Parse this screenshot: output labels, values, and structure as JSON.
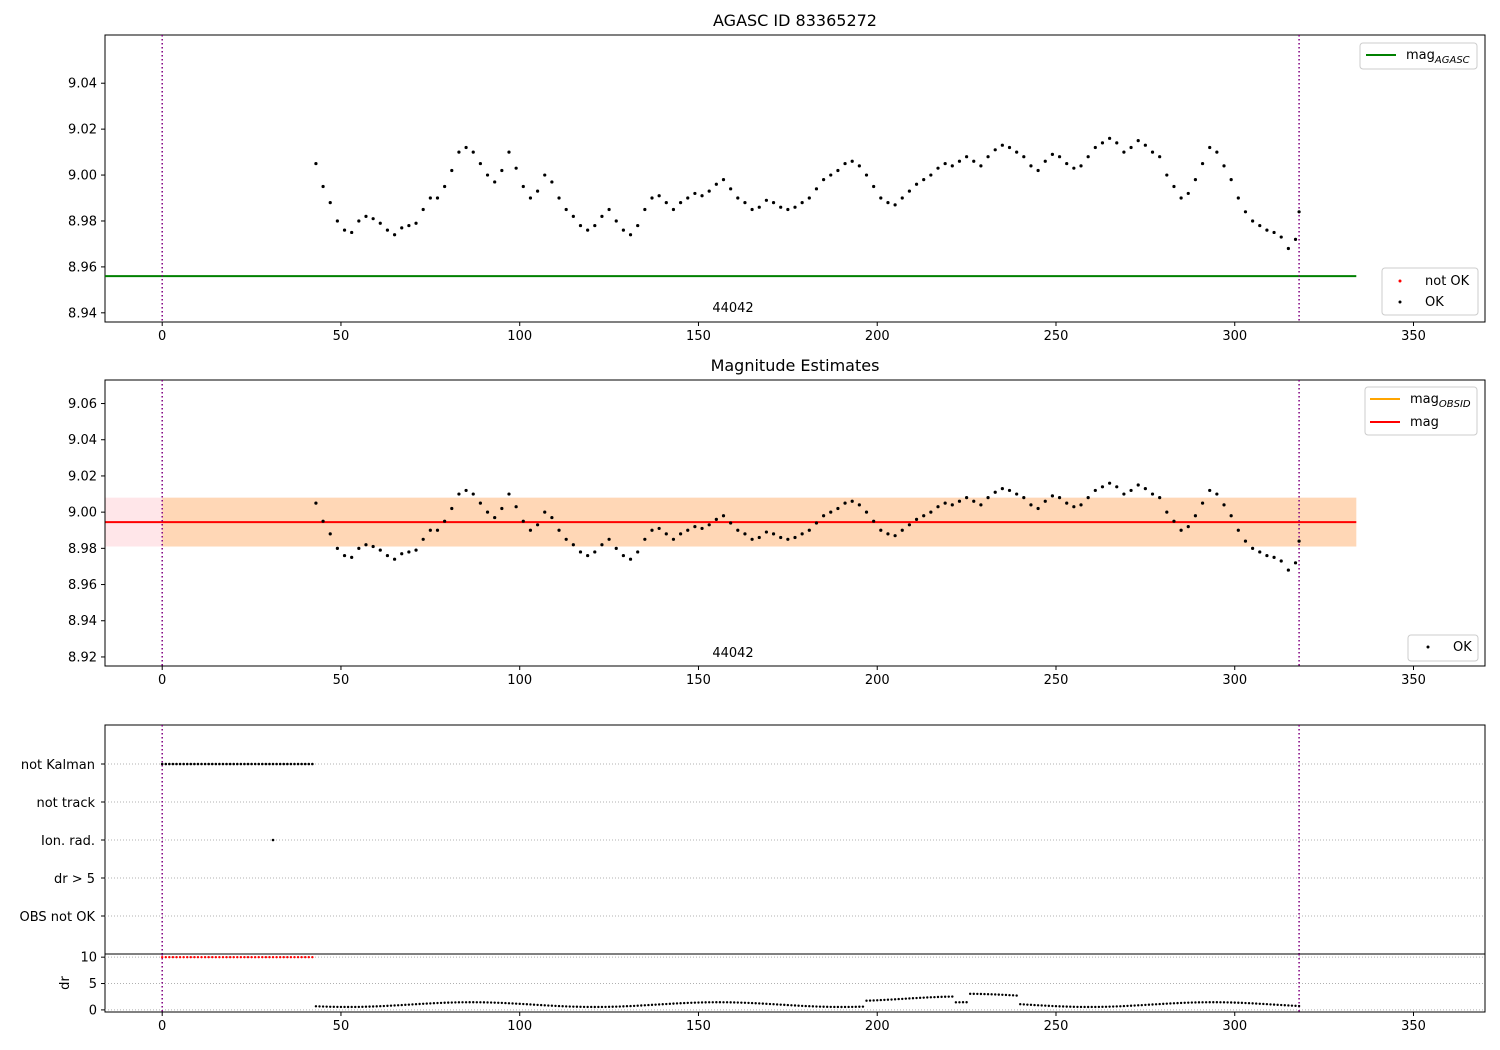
{
  "chart_data": [
    {
      "type": "scatter",
      "title": "AGASC ID 83365272",
      "obsid_label": "44042",
      "xlim": [
        -16,
        370
      ],
      "ylim": [
        8.936,
        9.061
      ],
      "xticks": [
        0,
        50,
        100,
        150,
        200,
        250,
        300,
        350
      ],
      "yticks": [
        8.94,
        8.96,
        8.98,
        9.0,
        9.02,
        9.04
      ],
      "ytick_labels": [
        "8.94",
        "8.96",
        "8.98",
        "9.00",
        "9.02",
        "9.04"
      ],
      "vlines": [
        0,
        318
      ],
      "hline": {
        "name": "mag_AGASC",
        "y": 8.956,
        "x": [
          -16,
          334
        ],
        "color": "#008000"
      },
      "legend_upper": {
        "entry_main": "mag",
        "entry_sub": "AGASC",
        "placement": "upper right"
      },
      "legend_lower": {
        "entries": [
          {
            "label": "not OK",
            "color": "#ff0000"
          },
          {
            "label": "OK",
            "color": "#000000"
          }
        ],
        "placement": "lower right"
      },
      "series": [
        {
          "name": "OK",
          "color": "#000000",
          "x": [
            43,
            45,
            47,
            49,
            51,
            53,
            55,
            57,
            59,
            61,
            63,
            65,
            67,
            69,
            71,
            73,
            75,
            77,
            79,
            81,
            83,
            85,
            87,
            89,
            91,
            93,
            95,
            97,
            99,
            101,
            103,
            105,
            107,
            109,
            111,
            113,
            115,
            117,
            119,
            121,
            123,
            125,
            127,
            129,
            131,
            133,
            135,
            137,
            139,
            141,
            143,
            145,
            147,
            149,
            151,
            153,
            155,
            157,
            159,
            161,
            163,
            165,
            167,
            169,
            171,
            173,
            175,
            177,
            179,
            181,
            183,
            185,
            187,
            189,
            191,
            193,
            195,
            197,
            199,
            201,
            203,
            205,
            207,
            209,
            211,
            213,
            215,
            217,
            219,
            221,
            223,
            225,
            227,
            229,
            231,
            233,
            235,
            237,
            239,
            241,
            243,
            245,
            247,
            249,
            251,
            253,
            255,
            257,
            259,
            261,
            263,
            265,
            267,
            269,
            271,
            273,
            275,
            277,
            279,
            281,
            283,
            285,
            287,
            289,
            291,
            293,
            295,
            297,
            299,
            301,
            303,
            305,
            307,
            309,
            311,
            313,
            315,
            317,
            318
          ],
          "y": [
            9.005,
            8.995,
            8.988,
            8.98,
            8.976,
            8.975,
            8.98,
            8.982,
            8.981,
            8.979,
            8.976,
            8.974,
            8.977,
            8.978,
            8.979,
            8.985,
            8.99,
            8.99,
            8.995,
            9.002,
            9.01,
            9.012,
            9.01,
            9.005,
            9.0,
            8.997,
            9.002,
            9.01,
            9.003,
            8.995,
            8.99,
            8.993,
            9.0,
            8.997,
            8.99,
            8.985,
            8.982,
            8.978,
            8.976,
            8.978,
            8.982,
            8.985,
            8.98,
            8.976,
            8.974,
            8.978,
            8.985,
            8.99,
            8.991,
            8.988,
            8.985,
            8.988,
            8.99,
            8.992,
            8.991,
            8.993,
            8.996,
            8.998,
            8.994,
            8.99,
            8.988,
            8.985,
            8.986,
            8.989,
            8.988,
            8.986,
            8.985,
            8.986,
            8.988,
            8.99,
            8.994,
            8.998,
            9.0,
            9.002,
            9.005,
            9.006,
            9.004,
            9.0,
            8.995,
            8.99,
            8.988,
            8.987,
            8.99,
            8.993,
            8.996,
            8.998,
            9.0,
            9.003,
            9.005,
            9.004,
            9.006,
            9.008,
            9.006,
            9.004,
            9.008,
            9.011,
            9.013,
            9.012,
            9.01,
            9.008,
            9.004,
            9.002,
            9.006,
            9.009,
            9.008,
            9.005,
            9.003,
            9.004,
            9.008,
            9.012,
            9.014,
            9.016,
            9.014,
            9.01,
            9.012,
            9.015,
            9.013,
            9.01,
            9.008,
            9.0,
            8.995,
            8.99,
            8.992,
            8.998,
            9.005,
            9.012,
            9.01,
            9.004,
            8.998,
            8.99,
            8.984,
            8.98,
            8.978,
            8.976,
            8.975,
            8.973,
            8.968,
            8.972,
            8.984
          ]
        }
      ]
    },
    {
      "type": "scatter",
      "title": "Magnitude Estimates",
      "obsid_label": "44042",
      "xlim": [
        -16,
        370
      ],
      "ylim": [
        8.915,
        9.073
      ],
      "xticks": [
        0,
        50,
        100,
        150,
        200,
        250,
        300,
        350
      ],
      "yticks": [
        8.92,
        8.94,
        8.96,
        8.98,
        9.0,
        9.02,
        9.04,
        9.06
      ],
      "ytick_labels": [
        "8.92",
        "8.94",
        "8.96",
        "8.98",
        "9.00",
        "9.02",
        "9.04",
        "9.06"
      ],
      "vlines": [
        0,
        318
      ],
      "mag_line": {
        "name": "mag",
        "y": 8.9945,
        "color": "#ff0000"
      },
      "mag_band": {
        "y0": 8.981,
        "y1": 9.008,
        "x": [
          -16,
          334
        ],
        "color": "#ffb6c1"
      },
      "obsid_band": {
        "y0": 8.981,
        "y1": 9.008,
        "x": [
          0,
          334
        ],
        "color": "#ffa500"
      },
      "legend_upper": {
        "entry_main": "mag",
        "entry_sub": "OBSID",
        "entry_second": "mag",
        "colors": [
          "#ffa500",
          "#ff0000"
        ],
        "placement": "upper right"
      },
      "legend_lower": {
        "entries": [
          {
            "label": "OK",
            "color": "#000000"
          }
        ],
        "placement": "lower right"
      },
      "series": [
        {
          "name": "OK",
          "color": "#000000",
          "x": [
            43,
            45,
            47,
            49,
            51,
            53,
            55,
            57,
            59,
            61,
            63,
            65,
            67,
            69,
            71,
            73,
            75,
            77,
            79,
            81,
            83,
            85,
            87,
            89,
            91,
            93,
            95,
            97,
            99,
            101,
            103,
            105,
            107,
            109,
            111,
            113,
            115,
            117,
            119,
            121,
            123,
            125,
            127,
            129,
            131,
            133,
            135,
            137,
            139,
            141,
            143,
            145,
            147,
            149,
            151,
            153,
            155,
            157,
            159,
            161,
            163,
            165,
            167,
            169,
            171,
            173,
            175,
            177,
            179,
            181,
            183,
            185,
            187,
            189,
            191,
            193,
            195,
            197,
            199,
            201,
            203,
            205,
            207,
            209,
            211,
            213,
            215,
            217,
            219,
            221,
            223,
            225,
            227,
            229,
            231,
            233,
            235,
            237,
            239,
            241,
            243,
            245,
            247,
            249,
            251,
            253,
            255,
            257,
            259,
            261,
            263,
            265,
            267,
            269,
            271,
            273,
            275,
            277,
            279,
            281,
            283,
            285,
            287,
            289,
            291,
            293,
            295,
            297,
            299,
            301,
            303,
            305,
            307,
            309,
            311,
            313,
            315,
            317,
            318
          ],
          "y": [
            9.005,
            8.995,
            8.988,
            8.98,
            8.976,
            8.975,
            8.98,
            8.982,
            8.981,
            8.979,
            8.976,
            8.974,
            8.977,
            8.978,
            8.979,
            8.985,
            8.99,
            8.99,
            8.995,
            9.002,
            9.01,
            9.012,
            9.01,
            9.005,
            9.0,
            8.997,
            9.002,
            9.01,
            9.003,
            8.995,
            8.99,
            8.993,
            9.0,
            8.997,
            8.99,
            8.985,
            8.982,
            8.978,
            8.976,
            8.978,
            8.982,
            8.985,
            8.98,
            8.976,
            8.974,
            8.978,
            8.985,
            8.99,
            8.991,
            8.988,
            8.985,
            8.988,
            8.99,
            8.992,
            8.991,
            8.993,
            8.996,
            8.998,
            8.994,
            8.99,
            8.988,
            8.985,
            8.986,
            8.989,
            8.988,
            8.986,
            8.985,
            8.986,
            8.988,
            8.99,
            8.994,
            8.998,
            9.0,
            9.002,
            9.005,
            9.006,
            9.004,
            9.0,
            8.995,
            8.99,
            8.988,
            8.987,
            8.99,
            8.993,
            8.996,
            8.998,
            9.0,
            9.003,
            9.005,
            9.004,
            9.006,
            9.008,
            9.006,
            9.004,
            9.008,
            9.011,
            9.013,
            9.012,
            9.01,
            9.008,
            9.004,
            9.002,
            9.006,
            9.009,
            9.008,
            9.005,
            9.003,
            9.004,
            9.008,
            9.012,
            9.014,
            9.016,
            9.014,
            9.01,
            9.012,
            9.015,
            9.013,
            9.01,
            9.008,
            9.0,
            8.995,
            8.99,
            8.992,
            8.998,
            9.005,
            9.012,
            9.01,
            9.004,
            8.998,
            8.99,
            8.984,
            8.98,
            8.978,
            8.976,
            8.975,
            8.973,
            8.968,
            8.972,
            8.984
          ]
        }
      ]
    },
    {
      "type": "scatter",
      "title": "",
      "xlim": [
        -16,
        370
      ],
      "xticks": [
        0,
        50,
        100,
        150,
        200,
        250,
        300,
        350
      ],
      "vlines": [
        0,
        318
      ],
      "flag_rows": [
        "not Kalman",
        "not track",
        "Ion. rad.",
        "dr > 5",
        "OBS not OK"
      ],
      "flags": {
        "not_kalman": {
          "x_start": 0,
          "x_end": 42,
          "step": 1
        },
        "ion_rad": {
          "x": [
            31
          ]
        }
      },
      "dr_panel": {
        "ylabel": "dr",
        "yticks": [
          0,
          5,
          10
        ],
        "ytick_labels": [
          "0",
          "5",
          "10"
        ],
        "ylim": [
          -0.4,
          10.6
        ],
        "clipped_red": {
          "x_start": 0,
          "x_end": 42,
          "step": 1,
          "y": 10
        },
        "ok_x_start": 43,
        "ok_x_end": 318,
        "ok_step": 1
      }
    }
  ],
  "colors": {
    "vline": "#800080",
    "axes": "#000000",
    "grid": "#b0b0b0"
  }
}
